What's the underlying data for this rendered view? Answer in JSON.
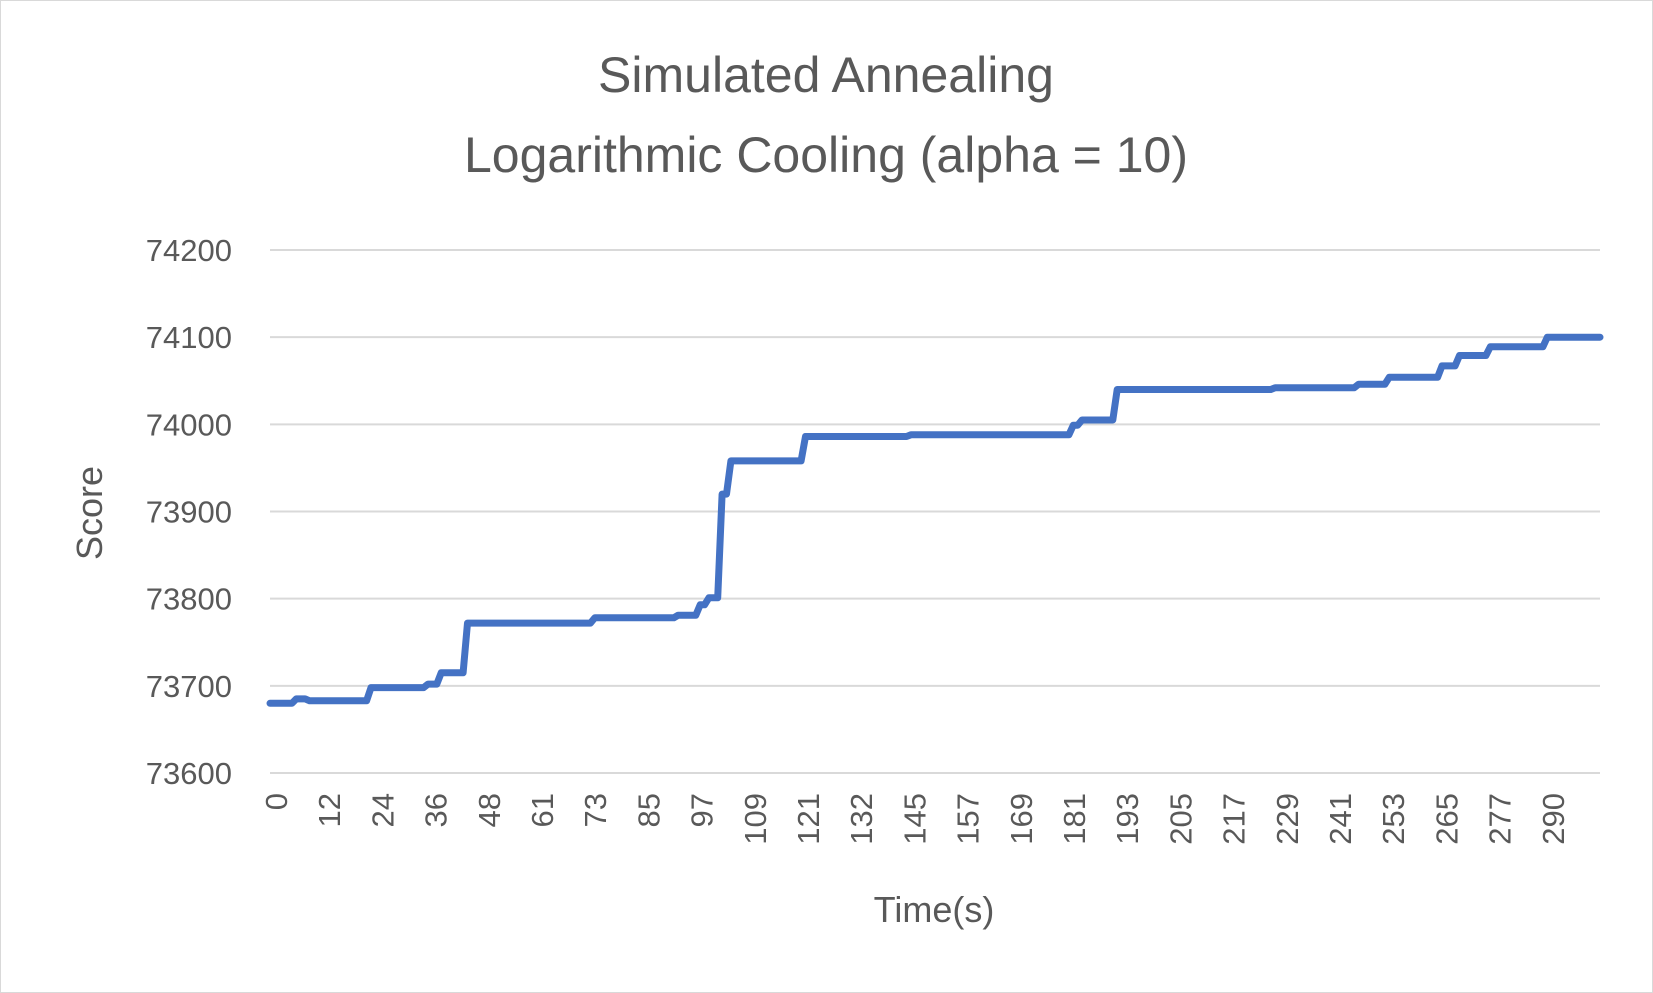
{
  "chart_data": {
    "type": "line",
    "title_lines": [
      "Simulated Annealing",
      "Logarithmic Cooling (alpha = 10)"
    ],
    "xlabel": "Time(s)",
    "ylabel": "Score",
    "ylim": [
      73600,
      74200
    ],
    "y_ticks": [
      73600,
      73700,
      73800,
      73900,
      74000,
      74100,
      74200
    ],
    "x_tick_labels": [
      "0",
      "12",
      "24",
      "36",
      "48",
      "61",
      "73",
      "85",
      "97",
      "109",
      "121",
      "132",
      "145",
      "157",
      "169",
      "181",
      "193",
      "205",
      "217",
      "229",
      "241",
      "253",
      "265",
      "277",
      "290"
    ],
    "xlim": [
      0,
      303
    ],
    "grid": true,
    "legend": "none",
    "series": [
      {
        "color": "#4472c4",
        "x": [
          0,
          5,
          6,
          8,
          9,
          22,
          23,
          35,
          36,
          38,
          39,
          44,
          45,
          73,
          74,
          92,
          93,
          97,
          98,
          99,
          100,
          102,
          103,
          104,
          105,
          106,
          121,
          122,
          145,
          146,
          182,
          183,
          184,
          185,
          192,
          193,
          228,
          229,
          247,
          248,
          254,
          255,
          266,
          267,
          270,
          271,
          277,
          278,
          290,
          291,
          303
        ],
        "y": [
          73680,
          73680,
          73685,
          73685,
          73683,
          73683,
          73698,
          73698,
          73702,
          73702,
          73715,
          73715,
          73772,
          73772,
          73778,
          73778,
          73781,
          73781,
          73793,
          73793,
          73801,
          73801,
          73920,
          73920,
          73958,
          73958,
          73958,
          73986,
          73986,
          73988,
          73988,
          73999,
          73999,
          74005,
          74005,
          74040,
          74040,
          74042,
          74042,
          74046,
          74046,
          74054,
          74054,
          74067,
          74067,
          74079,
          74079,
          74089,
          74089,
          74100,
          74100
        ]
      }
    ]
  }
}
